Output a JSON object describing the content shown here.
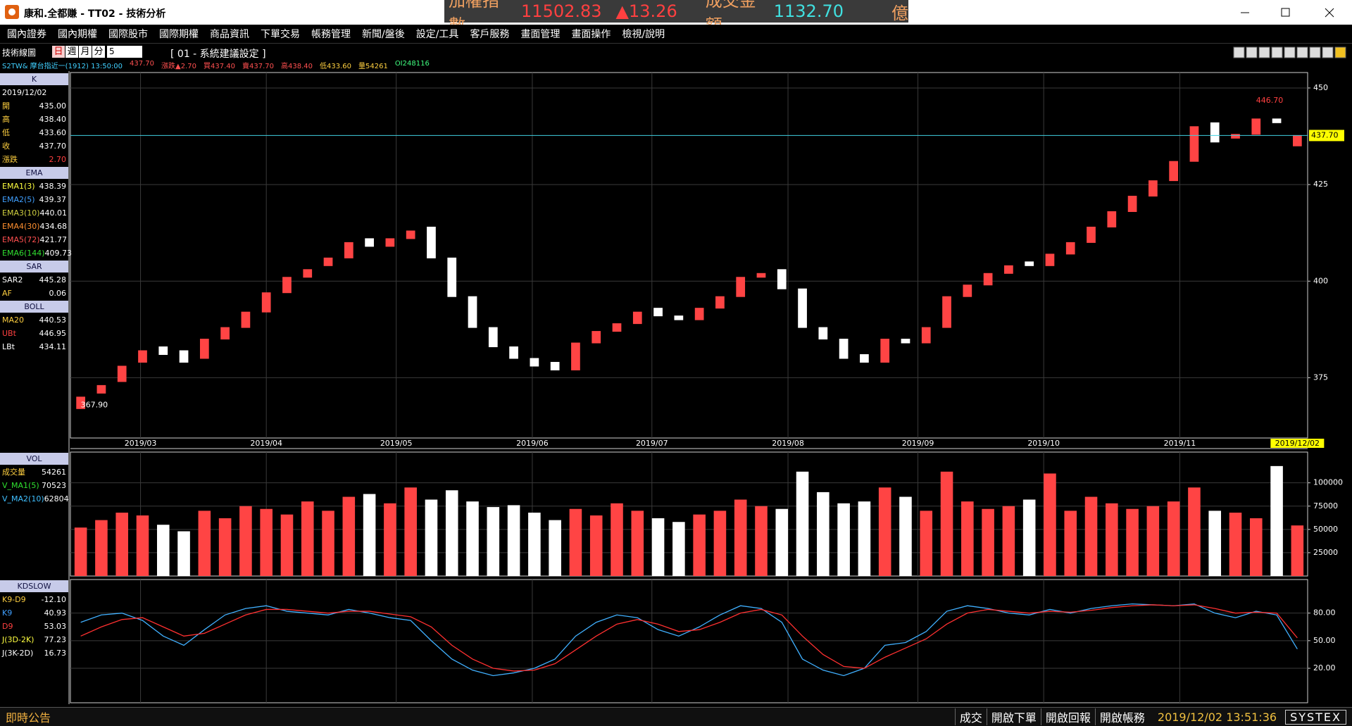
{
  "window": {
    "title": "康和.全都賺 - TT02 - 技術分析"
  },
  "ticker": {
    "index_label": "加權指數",
    "index_value": "11502.83",
    "index_change": "▲13.26",
    "turnover_label": "成交金額",
    "turnover_value": "1132.70",
    "turnover_unit": "億"
  },
  "menu": [
    "國內證券",
    "國內期權",
    "國際股市",
    "國際期權",
    "商品資訊",
    "下單交易",
    "帳務管理",
    "新聞/盤後",
    "設定/工具",
    "客戶服務",
    "畫面管理",
    "畫面操作",
    "檢視/說明"
  ],
  "toolbar": {
    "label": "技術線圖",
    "periods": [
      "日",
      "週",
      "月",
      "分"
    ],
    "minutes": "5",
    "setting": "[ 01 - 系統建議設定 ]"
  },
  "info_line": [
    "S2TW&  摩台指近一(1912)  13:50:00",
    "437.70",
    "漲跌▲2.70",
    "買437.40",
    "賣437.70",
    "高438.40",
    "低433.60",
    "量54261",
    "OI248116"
  ],
  "side_panels": [
    {
      "groups": [
        {
          "title": "K",
          "rows": [
            {
              "label": "2019/12/02",
              "color": "#ffffff"
            },
            {
              "label": "開",
              "value": "435.00",
              "color": "#ffd040"
            },
            {
              "label": "高",
              "value": "438.40",
              "color": "#ffd040"
            },
            {
              "label": "低",
              "value": "433.60",
              "color": "#ffd040"
            },
            {
              "label": "收",
              "value": "437.70",
              "color": "#ffd040"
            },
            {
              "label": "漲跌",
              "value": "2.70",
              "color": "#ffd040",
              "value_color": "#ff4040"
            }
          ]
        },
        {
          "title": "EMA",
          "rows": [
            {
              "label": "EMA1(3)",
              "value": "438.39",
              "color": "#ffff40"
            },
            {
              "label": "EMA2(5)",
              "value": "439.37",
              "color": "#40a0ff"
            },
            {
              "label": "EMA3(10)",
              "value": "440.01",
              "color": "#d0d040"
            },
            {
              "label": "EMA4(30)",
              "value": "434.68",
              "color": "#ff9030"
            },
            {
              "label": "EMA5(72)",
              "value": "421.77",
              "color": "#ff5050"
            },
            {
              "label": "EMA6(144)",
              "value": "409.73",
              "color": "#30e030"
            }
          ]
        },
        {
          "title": "SAR",
          "rows": [
            {
              "label": "SAR2",
              "value": "445.28",
              "color": "#ffffff"
            },
            {
              "label": "AF",
              "value": "0.06",
              "color": "#ffd040"
            }
          ]
        },
        {
          "title": "BOLL",
          "rows": [
            {
              "label": "MA20",
              "value": "440.53",
              "color": "#ffd040"
            },
            {
              "label": "UBt",
              "value": "446.95",
              "color": "#ff4040"
            },
            {
              "label": "LBt",
              "value": "434.11",
              "color": "#ffffff"
            }
          ]
        }
      ]
    },
    {
      "groups": [
        {
          "title": "VOL",
          "rows": [
            {
              "label": "成交量",
              "value": "54261",
              "color": "#ffd040"
            },
            {
              "label": "V_MA1(5)",
              "value": "70523",
              "color": "#30e030"
            },
            {
              "label": "V_MA2(10)",
              "value": "62804",
              "color": "#40c0ff"
            }
          ]
        }
      ]
    },
    {
      "groups": [
        {
          "title": "KDSLOW",
          "rows": [
            {
              "label": "K9-D9",
              "value": "-12.10",
              "color": "#ffd040"
            },
            {
              "label": "K9",
              "value": "40.93",
              "color": "#40a0ff"
            },
            {
              "label": "D9",
              "value": "53.03",
              "color": "#ff4040"
            },
            {
              "label": "J(3D-2K)",
              "value": "77.23",
              "color": "#ffff40"
            },
            {
              "label": "J(3K-2D)",
              "value": "16.73",
              "color": "#ffffff"
            }
          ]
        }
      ]
    }
  ],
  "chart_data": [
    {
      "type": "candlestick",
      "xlim": [
        -0.5,
        59.5
      ],
      "ylim": [
        359.4,
        454
      ],
      "yticks": [
        375,
        400,
        425,
        450
      ],
      "grid": true,
      "up_color": "#ff4444",
      "down_color": "#ffffff",
      "xticks": [
        {
          "value": 2.9,
          "label": "2019/03"
        },
        {
          "value": 9,
          "label": "2019/04"
        },
        {
          "value": 15.3,
          "label": "2019/05"
        },
        {
          "value": 21.9,
          "label": "2019/06"
        },
        {
          "value": 27.7,
          "label": "2019/07"
        },
        {
          "value": 34.3,
          "label": "2019/08"
        },
        {
          "value": 40.6,
          "label": "2019/09"
        },
        {
          "value": 46.7,
          "label": "2019/10"
        },
        {
          "value": 53.3,
          "label": "2019/11"
        },
        {
          "value": 59,
          "label": "2019/12/02"
        }
      ],
      "open": [
        367,
        371,
        374,
        379,
        383,
        382,
        380,
        385,
        388,
        392,
        397,
        401,
        404,
        406,
        411,
        409,
        411,
        414,
        406,
        396,
        388,
        383,
        380,
        379,
        377,
        384,
        387,
        389,
        393,
        391,
        390,
        393,
        396,
        401,
        403,
        398,
        388,
        385,
        381,
        379,
        385,
        384,
        388,
        396,
        399,
        402,
        405,
        404,
        407,
        410,
        414,
        418,
        422,
        426,
        431,
        441,
        437,
        438,
        442,
        435
      ],
      "close": [
        370,
        373,
        378,
        382,
        381,
        379,
        385,
        388,
        392,
        397,
        401,
        403,
        406,
        410,
        409,
        411,
        413,
        406,
        396,
        388,
        383,
        380,
        378,
        377,
        384,
        387,
        389,
        392,
        391,
        390,
        393,
        396,
        401,
        402,
        398,
        388,
        385,
        380,
        379,
        385,
        384,
        388,
        396,
        399,
        402,
        404,
        404,
        407,
        410,
        414,
        418,
        422,
        426,
        431,
        440,
        436,
        438,
        442,
        441,
        437.7
      ],
      "price_line": {
        "value": 437.7,
        "label": "437.70"
      },
      "annotations": [
        {
          "text": "446.70",
          "x": 57,
          "y": 446.7,
          "color": "#ff4040"
        },
        {
          "text": "367.90",
          "x": 0,
          "y": 367.9,
          "color": "#ffffff"
        }
      ]
    },
    {
      "type": "bar",
      "xlim": [
        -0.5,
        59.5
      ],
      "ylim": [
        0,
        133000
      ],
      "yticks": [
        25000,
        50000,
        75000,
        100000
      ],
      "grid": true,
      "values": [
        52000,
        60000,
        68000,
        65000,
        55000,
        48000,
        70000,
        62000,
        75000,
        72000,
        66000,
        80000,
        70000,
        85000,
        88000,
        78000,
        95000,
        82000,
        92000,
        80000,
        74000,
        76000,
        68000,
        60000,
        72000,
        65000,
        78000,
        70000,
        62000,
        58000,
        66000,
        70000,
        82000,
        75000,
        72000,
        112000,
        90000,
        78000,
        80000,
        95000,
        85000,
        70000,
        112000,
        80000,
        72000,
        75000,
        82000,
        110000,
        70000,
        85000,
        78000,
        72000,
        75000,
        80000,
        95000,
        70000,
        68000,
        62000,
        118000,
        54261
      ]
    },
    {
      "type": "line",
      "xlim": [
        -0.5,
        59.5
      ],
      "ylim": [
        -17.5,
        116.5
      ],
      "yticks": [
        {
          "value": 20,
          "label": "20.00"
        },
        {
          "value": 50,
          "label": "50.00"
        },
        {
          "value": 80,
          "label": "80.00"
        }
      ],
      "grid": true,
      "series": [
        {
          "name": "K9",
          "color": "#40b0ff",
          "values": [
            70,
            78,
            80,
            72,
            55,
            45,
            62,
            78,
            85,
            88,
            82,
            80,
            78,
            84,
            80,
            75,
            72,
            50,
            30,
            18,
            12,
            15,
            20,
            30,
            55,
            70,
            78,
            75,
            62,
            55,
            65,
            78,
            88,
            85,
            70,
            30,
            18,
            12,
            20,
            45,
            48,
            60,
            82,
            88,
            85,
            80,
            78,
            84,
            80,
            85,
            88,
            90,
            89,
            88,
            90,
            80,
            75,
            82,
            78,
            40.93
          ]
        },
        {
          "name": "D9",
          "color": "#ff3030",
          "values": [
            55,
            65,
            73,
            75,
            65,
            55,
            58,
            68,
            78,
            84,
            84,
            82,
            80,
            82,
            82,
            79,
            76,
            65,
            45,
            30,
            20,
            17,
            18,
            25,
            40,
            55,
            68,
            73,
            68,
            60,
            62,
            70,
            80,
            84,
            78,
            55,
            35,
            22,
            20,
            32,
            42,
            52,
            68,
            80,
            84,
            82,
            80,
            82,
            81,
            83,
            86,
            88,
            89,
            88,
            89,
            85,
            80,
            81,
            80,
            53.03
          ]
        }
      ]
    }
  ],
  "status_bar": {
    "notice": "即時公告",
    "items": [
      "成交",
      "開啟下單",
      "開啟回報",
      "開啟帳務"
    ],
    "datetime": "2019/12/02 13:51:36",
    "brand": "SYSTEX"
  }
}
